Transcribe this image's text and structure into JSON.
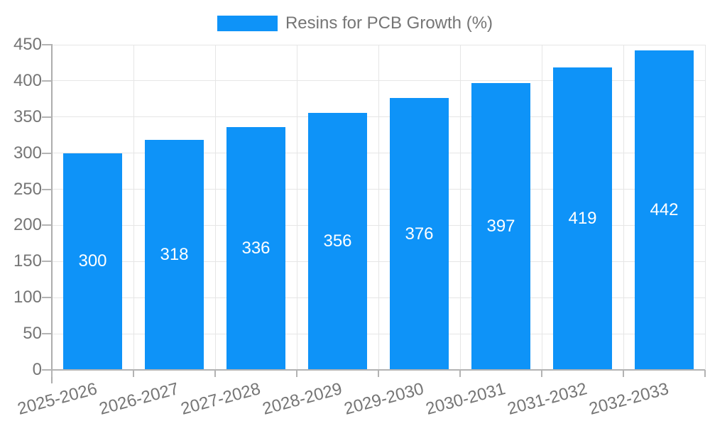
{
  "legend": {
    "label": "Resins for PCB Growth (%)"
  },
  "chart_data": {
    "type": "bar",
    "title": "",
    "series_name": "Resins for PCB Growth (%)",
    "categories": [
      "2025-2026",
      "2026-2027",
      "2027-2028",
      "2028-2029",
      "2029-2030",
      "2030-2031",
      "2031-2032",
      "2032-2033"
    ],
    "values": [
      300,
      318,
      336,
      356,
      376,
      397,
      419,
      442
    ],
    "bar_labels_visible": true,
    "xlabel": "",
    "ylabel": "",
    "ylim": [
      0,
      450
    ],
    "yticks": [
      0,
      50,
      100,
      150,
      200,
      250,
      300,
      350,
      400,
      450
    ],
    "grid": true,
    "legend_position": "top-center",
    "x_label_rotation_deg": -15,
    "colors": {
      "bar": "#0e93f8",
      "grid": "#e6e6e6",
      "axis": "#b3b3b3",
      "tick_label": "#757575",
      "bar_label": "#ffffff",
      "legend_text": "#757575",
      "background": "#ffffff"
    }
  }
}
